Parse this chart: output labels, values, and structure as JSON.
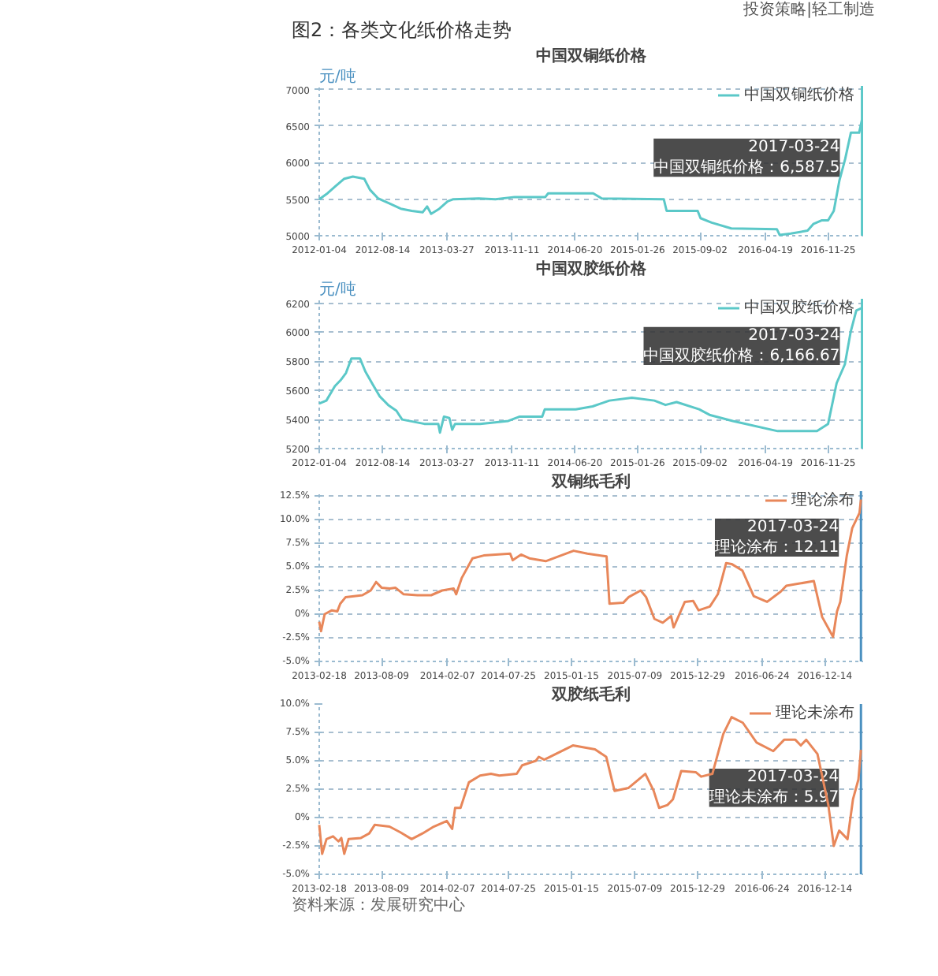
{
  "chart_data": [
    {
      "type": "other",
      "title": "图2：各类文化纸价格走势",
      "annotations": [
        "投资策略|轻工制造",
        "资料来源：发展研究中心"
      ]
    },
    {
      "type": "line",
      "title": "中国双铜纸价格",
      "ylabel": "元/吨",
      "legend": "top right",
      "grid": "y",
      "xlim": [
        "2012-01-04",
        "2017-03-28"
      ],
      "ylim": [
        5000,
        7050
      ],
      "yticks": [
        5000,
        5500,
        6000,
        6500,
        7000
      ],
      "xticks": [
        "2012-01-04",
        "2012-08-14",
        "2013-03-27",
        "2013-11-11",
        "2014-06-20",
        "2015-01-26",
        "2015-09-02",
        "2016-04-19",
        "2016-11-25"
      ],
      "ref_lines": [
        {
          "axis": "x",
          "value": "2017-03-24",
          "color": "#5bc8c8"
        }
      ],
      "annotations": [
        {
          "text": "2017-03-24\n中国双铜纸价格：6,587.5",
          "x": "2017-03-24",
          "y": 6587.5
        }
      ],
      "series": [
        {
          "name": "中国双铜纸价格",
          "color": "#5bc8c8",
          "x": [
            "2012-01-04",
            "2012-02-02",
            "2012-03-02",
            "2012-04-01",
            "2012-05-01",
            "2012-06-10",
            "2012-06-30",
            "2012-07-29",
            "2012-09-07",
            "2012-10-16",
            "2012-11-24",
            "2013-01-01",
            "2013-01-17",
            "2013-01-31",
            "2013-03-01",
            "2013-03-30",
            "2013-04-19",
            "2013-07-17",
            "2013-09-14",
            "2013-11-20",
            "2014-03-08",
            "2014-03-18",
            "2014-08-23",
            "2014-09-22",
            "2015-04-28",
            "2015-05-08",
            "2015-08-25",
            "2015-09-04",
            "2015-10-13",
            "2015-12-21",
            "2016-05-29",
            "2016-06-08",
            "2016-07-17",
            "2016-09-14",
            "2016-10-04",
            "2016-11-02",
            "2016-11-25",
            "2016-12-15",
            "2017-01-04",
            "2017-01-24",
            "2017-02-13",
            "2017-03-14",
            "2017-03-24"
          ],
          "values": [
            5500,
            5580,
            5680,
            5780,
            5810,
            5780,
            5630,
            5510,
            5440,
            5370,
            5340,
            5320,
            5400,
            5300,
            5370,
            5470,
            5500,
            5510,
            5500,
            5530,
            5530,
            5580,
            5580,
            5510,
            5500,
            5340,
            5340,
            5240,
            5180,
            5100,
            5090,
            5010,
            5030,
            5070,
            5160,
            5210,
            5210,
            5340,
            5760,
            6050,
            6410,
            6410,
            6587.5
          ]
        }
      ]
    },
    {
      "type": "line",
      "title": "中国双胶纸价格",
      "ylabel": "元/吨",
      "legend": "top right",
      "grid": "y",
      "xlim": [
        "2012-01-04",
        "2017-03-28"
      ],
      "ylim": [
        5200,
        6230
      ],
      "yticks": [
        5200,
        5400,
        5600,
        5800,
        6000,
        6200
      ],
      "xticks": [
        "2012-01-04",
        "2012-08-14",
        "2013-03-27",
        "2013-11-11",
        "2014-06-20",
        "2015-01-26",
        "2015-09-02",
        "2016-04-19",
        "2016-11-25"
      ],
      "ref_lines": [
        {
          "axis": "x",
          "value": "2017-03-24",
          "color": "#5bc8c8"
        }
      ],
      "annotations": [
        {
          "text": "2017-03-24\n中国双胶纸价格：6,166.67",
          "x": "2017-03-24",
          "y": 6166.67
        }
      ],
      "series": [
        {
          "name": "中国双胶纸价格",
          "color": "#5bc8c8",
          "x": [
            "2012-01-04",
            "2012-01-29",
            "2012-02-28",
            "2012-03-19",
            "2012-04-07",
            "2012-04-26",
            "2012-05-26",
            "2012-06-14",
            "2012-07-10",
            "2012-08-03",
            "2012-09-02",
            "2012-10-01",
            "2012-10-21",
            "2013-01-07",
            "2013-02-25",
            "2013-03-03",
            "2013-03-17",
            "2013-04-05",
            "2013-04-15",
            "2013-04-25",
            "2013-07-22",
            "2013-10-29",
            "2013-12-08",
            "2014-02-25",
            "2014-03-06",
            "2014-06-23",
            "2014-08-21",
            "2014-10-19",
            "2015-01-06",
            "2015-03-26",
            "2015-05-04",
            "2015-06-12",
            "2015-08-30",
            "2015-10-08",
            "2015-12-26",
            "2016-06-01",
            "2016-10-17",
            "2016-11-25",
            "2016-12-25",
            "2017-01-23",
            "2017-02-12",
            "2017-03-04",
            "2017-03-24"
          ],
          "values": [
            5510,
            5530,
            5630,
            5670,
            5720,
            5820,
            5820,
            5730,
            5640,
            5560,
            5500,
            5460,
            5400,
            5370,
            5370,
            5310,
            5420,
            5410,
            5330,
            5370,
            5370,
            5390,
            5420,
            5420,
            5470,
            5470,
            5490,
            5530,
            5550,
            5530,
            5500,
            5520,
            5470,
            5430,
            5390,
            5320,
            5320,
            5370,
            5650,
            5780,
            6000,
            6150,
            6166.67
          ]
        }
      ]
    },
    {
      "type": "line",
      "title": "双铜纸毛利",
      "legend": "top right",
      "grid": "y",
      "xlim": [
        "2013-02-18",
        "2017-03-30"
      ],
      "ylim": [
        -5,
        13
      ],
      "yticks": [
        {
          "value": -5,
          "label": "-5.0%"
        },
        {
          "value": -2.5,
          "label": "-2.5%"
        },
        {
          "value": 0,
          "label": "0%"
        },
        {
          "value": 2.5,
          "label": "2.5%"
        },
        {
          "value": 5,
          "label": "5.0%"
        },
        {
          "value": 7.5,
          "label": "7.5%"
        },
        {
          "value": 10,
          "label": "10.0%"
        },
        {
          "value": 12.5,
          "label": "12.5%"
        }
      ],
      "xticks": [
        "2013-02-18",
        "2013-08-09",
        "2014-02-07",
        "2014-07-25",
        "2015-01-15",
        "2015-07-09",
        "2015-12-29",
        "2016-06-24",
        "2016-12-14"
      ],
      "ref_lines": [
        {
          "axis": "x",
          "value": "2017-03-24",
          "color": "#4a90c0"
        }
      ],
      "annotations": [
        {
          "text": "2017-03-24\n理论涂布：12.11",
          "x": "2017-03-24",
          "y": 12.11
        }
      ],
      "series": [
        {
          "name": "理论涂布",
          "color": "#e8875a",
          "x": [
            "2013-02-18",
            "2013-02-23",
            "2013-03-05",
            "2013-03-25",
            "2013-04-09",
            "2013-04-17",
            "2013-05-02",
            "2013-06-17",
            "2013-07-10",
            "2013-07-25",
            "2013-08-09",
            "2013-09-01",
            "2013-09-16",
            "2013-10-09",
            "2013-11-16",
            "2013-12-24",
            "2014-01-23",
            "2014-02-24",
            "2014-03-03",
            "2014-03-18",
            "2014-04-17",
            "2014-05-18",
            "2014-07-30",
            "2014-08-06",
            "2014-08-29",
            "2014-09-21",
            "2014-11-05",
            "2015-01-21",
            "2015-02-28",
            "2015-04-22",
            "2015-04-30",
            "2015-06-07",
            "2015-06-22",
            "2015-07-25",
            "2015-08-09",
            "2015-09-01",
            "2015-09-24",
            "2015-10-17",
            "2015-10-24",
            "2015-11-24",
            "2015-12-17",
            "2016-01-01",
            "2016-02-01",
            "2016-02-23",
            "2016-03-17",
            "2016-04-01",
            "2016-05-01",
            "2016-06-01",
            "2016-07-08",
            "2016-08-15",
            "2016-08-30",
            "2016-09-30",
            "2016-11-14",
            "2016-12-07",
            "2017-01-06",
            "2017-01-17",
            "2017-01-26",
            "2017-02-13",
            "2017-02-28",
            "2017-03-20",
            "2017-03-24"
          ],
          "values": [
            -0.8,
            -1.8,
            0,
            0.4,
            0.3,
            1.1,
            1.8,
            2,
            2.5,
            3.4,
            2.8,
            2.7,
            2.8,
            2.1,
            2,
            2,
            2.5,
            2.7,
            2.1,
            3.8,
            5.9,
            6.2,
            6.4,
            5.7,
            6.3,
            5.9,
            5.6,
            6.7,
            6.4,
            6.1,
            1.1,
            1.2,
            1.8,
            2.5,
            1.8,
            -0.5,
            -0.9,
            -0.2,
            -1.4,
            1.3,
            1.4,
            0.4,
            0.8,
            2.1,
            5.4,
            5.3,
            4.6,
            1.9,
            1.3,
            2.4,
            3,
            3.2,
            3.5,
            -0.3,
            -2.4,
            0.3,
            1.3,
            6.2,
            9.1,
            10.7,
            12.11
          ]
        }
      ]
    },
    {
      "type": "line",
      "title": "双胶纸毛利",
      "legend": "top right",
      "grid": "y",
      "xlim": [
        "2013-02-18",
        "2017-03-30"
      ],
      "ylim": [
        -5,
        10
      ],
      "yticks": [
        {
          "value": -5,
          "label": "-5.0%"
        },
        {
          "value": -2.5,
          "label": "-2.5%"
        },
        {
          "value": 0,
          "label": "0%"
        },
        {
          "value": 2.5,
          "label": "2.5%"
        },
        {
          "value": 5,
          "label": "5.0%"
        },
        {
          "value": 7.5,
          "label": "7.5%"
        },
        {
          "value": 10,
          "label": "10.0%"
        }
      ],
      "xticks": [
        "2013-02-18",
        "2013-08-09",
        "2014-02-07",
        "2014-07-25",
        "2015-01-15",
        "2015-07-09",
        "2015-12-29",
        "2016-06-24",
        "2016-12-14"
      ],
      "ref_lines": [
        {
          "axis": "x",
          "value": "2017-03-24",
          "color": "#4a90c0"
        }
      ],
      "annotations": [
        {
          "text": "2017-03-24\n理论未涂布：5.97",
          "x": "2017-03-24",
          "y": 5.97
        }
      ],
      "series": [
        {
          "name": "理论未涂布",
          "color": "#e8875a",
          "x": [
            "2013-02-18",
            "2013-02-26",
            "2013-03-10",
            "2013-03-28",
            "2013-04-12",
            "2013-04-20",
            "2013-04-28",
            "2013-05-10",
            "2013-06-13",
            "2013-07-06",
            "2013-07-21",
            "2013-08-31",
            "2013-09-30",
            "2013-10-31",
            "2013-11-30",
            "2013-12-31",
            "2014-02-05",
            "2014-02-20",
            "2014-02-28",
            "2014-03-15",
            "2014-04-07",
            "2014-05-08",
            "2014-06-07",
            "2014-06-30",
            "2014-08-17",
            "2014-09-01",
            "2014-10-09",
            "2014-10-17",
            "2014-11-01",
            "2015-01-19",
            "2015-03-21",
            "2015-04-21",
            "2015-05-14",
            "2015-06-21",
            "2015-08-07",
            "2015-08-30",
            "2015-09-14",
            "2015-10-07",
            "2015-10-22",
            "2015-11-14",
            "2015-12-24",
            "2016-01-08",
            "2016-02-08",
            "2016-03-09",
            "2016-04-01",
            "2016-05-02",
            "2016-06-09",
            "2016-07-25",
            "2016-08-24",
            "2016-09-24",
            "2016-10-09",
            "2016-10-24",
            "2016-11-24",
            "2016-12-24",
            "2017-01-08",
            "2017-01-23",
            "2017-02-15",
            "2017-03-02",
            "2017-03-17",
            "2017-03-24"
          ],
          "values": [
            -0.65,
            -3.2,
            -1.9,
            -1.65,
            -2.1,
            -1.8,
            -3.2,
            -1.9,
            -1.8,
            -1.4,
            -0.65,
            -0.8,
            -1.3,
            -1.9,
            -1.4,
            -0.8,
            -0.3,
            -1,
            0.85,
            0.85,
            3.1,
            3.7,
            3.85,
            3.7,
            3.85,
            4.6,
            5,
            5.35,
            5.1,
            6.35,
            6,
            5.35,
            2.35,
            2.6,
            3.85,
            2.35,
            0.85,
            1.1,
            1.6,
            4.1,
            4,
            3.6,
            3.85,
            7.35,
            8.85,
            8.35,
            6.6,
            5.85,
            6.85,
            6.85,
            6.35,
            6.85,
            5.6,
            1.1,
            -2.5,
            -1.15,
            -1.9,
            1.6,
            3.35,
            5.97
          ]
        }
      ]
    }
  ]
}
